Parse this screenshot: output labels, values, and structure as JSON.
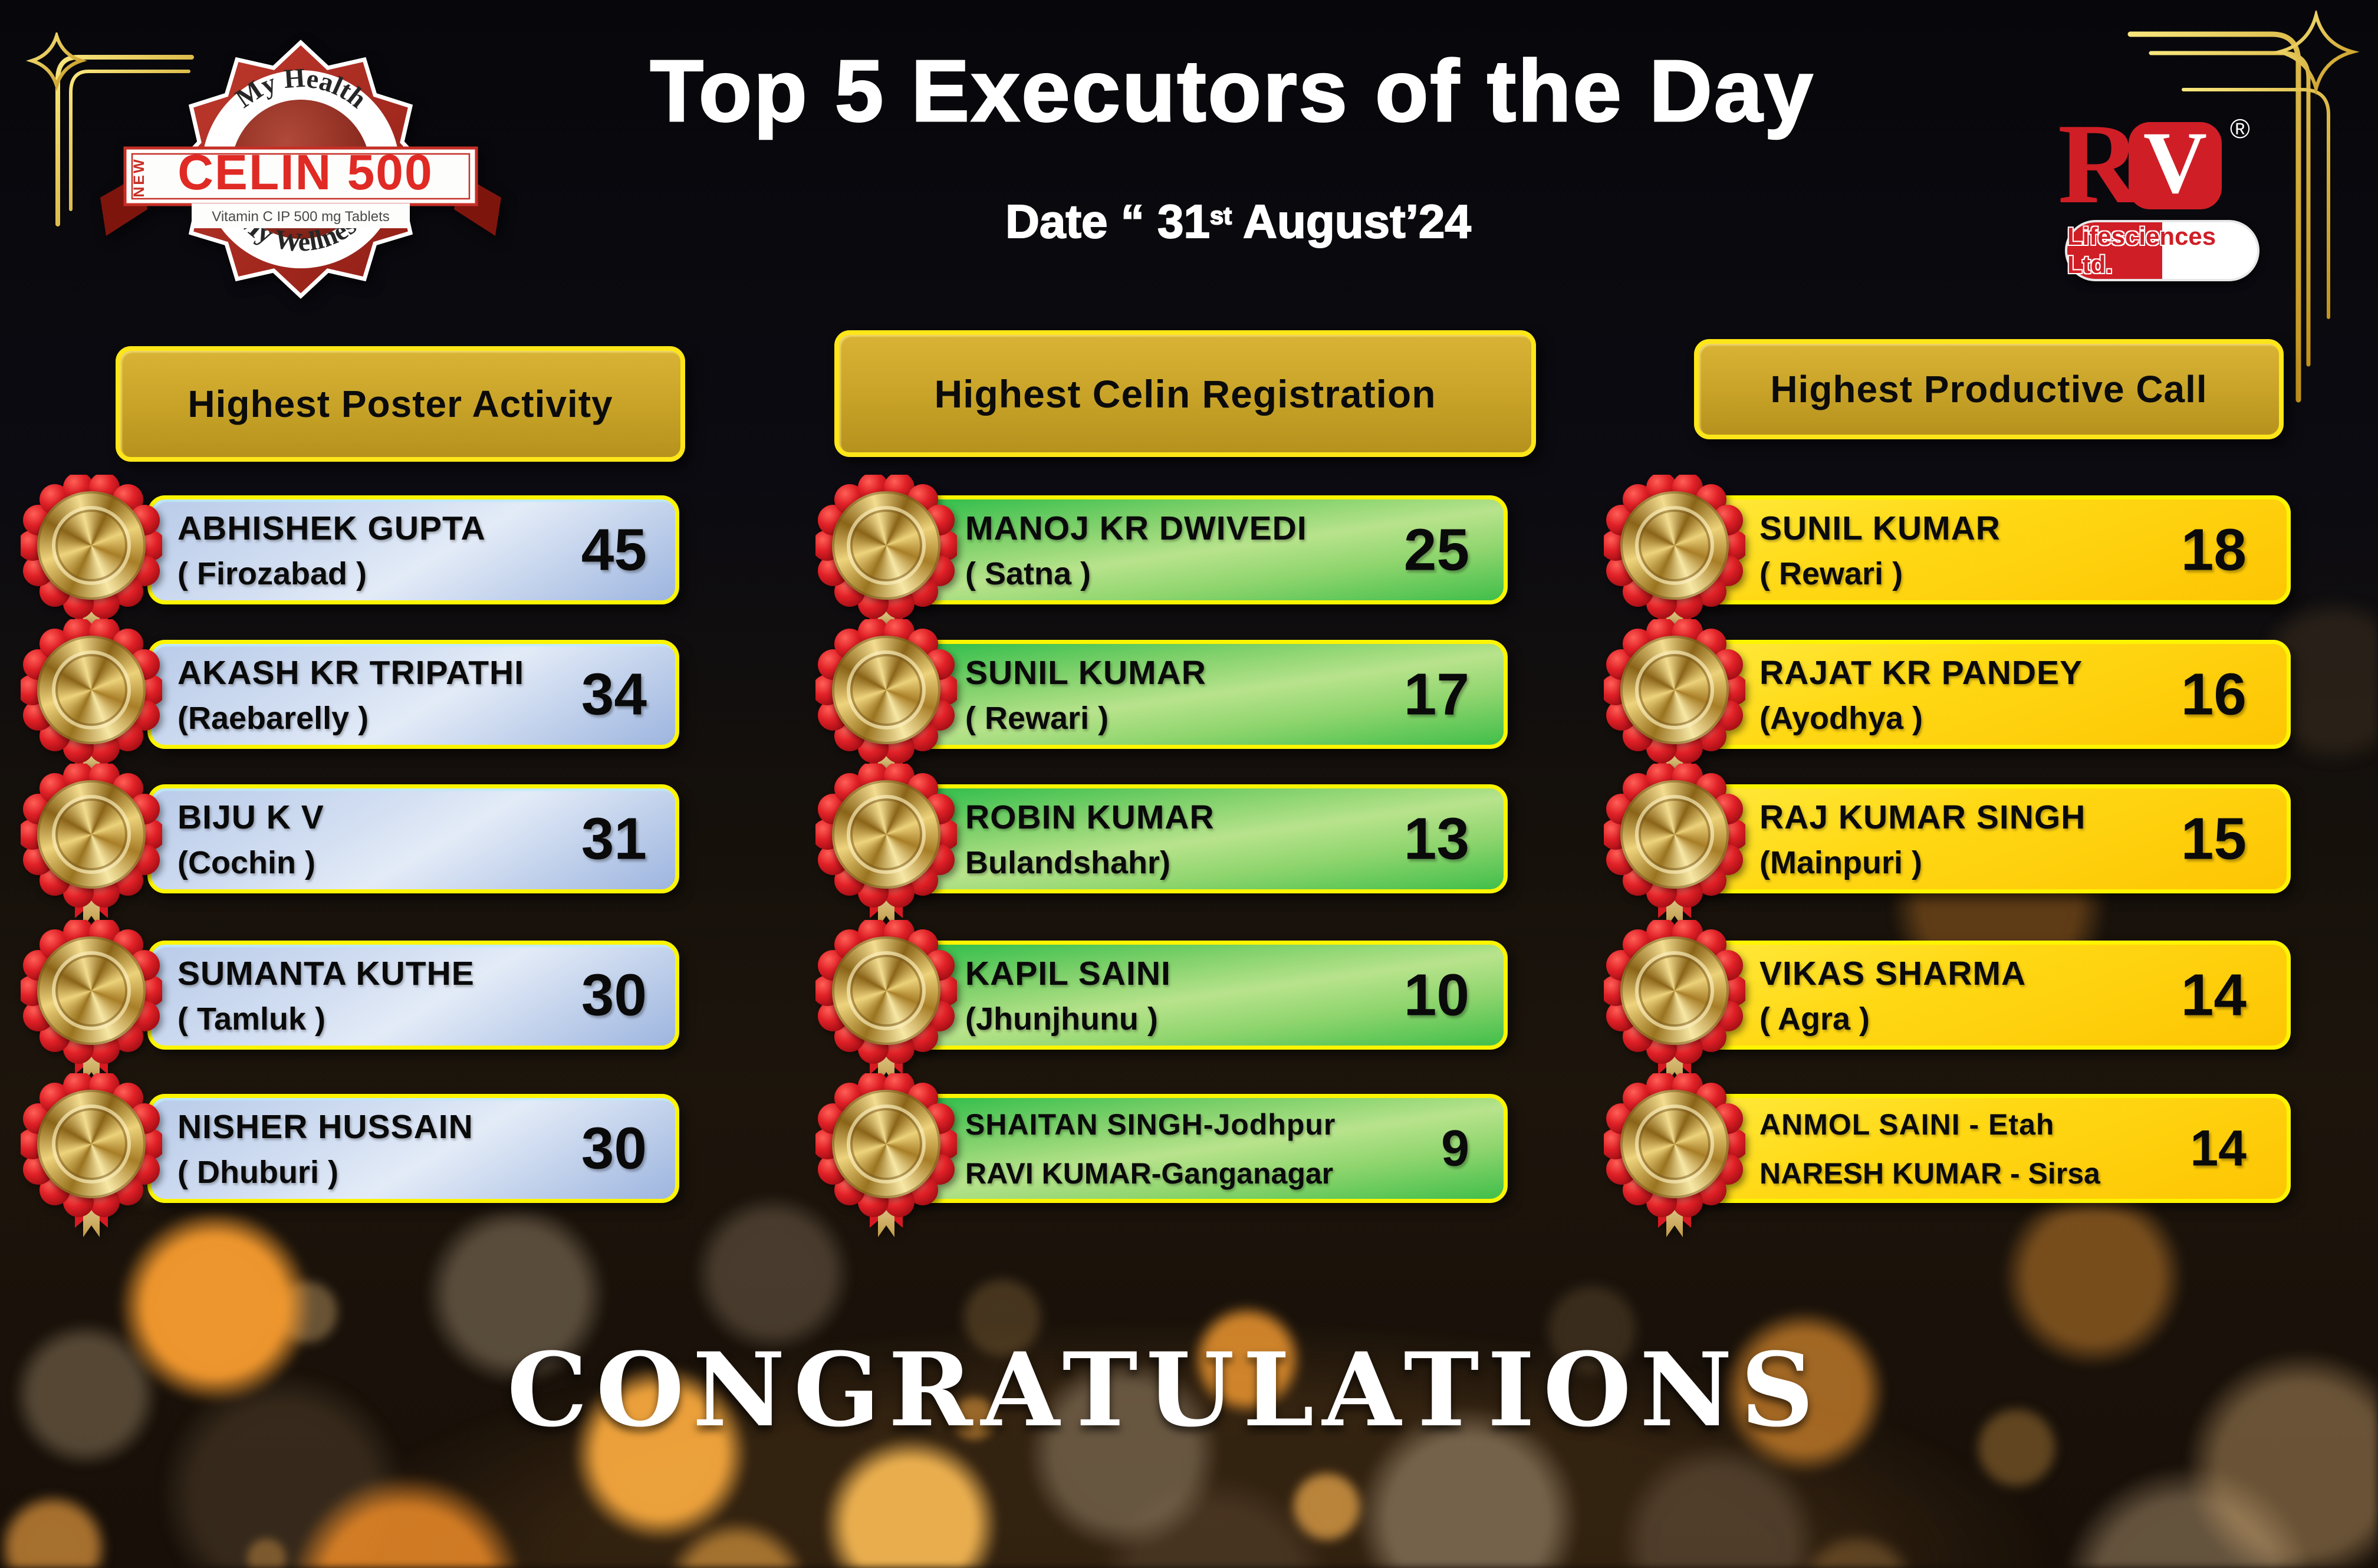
{
  "header": {
    "title": "Top 5 Executors of the Day",
    "date_prefix": "Date “ 31",
    "date_sup": "st",
    "date_suffix": " August’24"
  },
  "congratulations": "CONGRATULATIONS",
  "logos": {
    "celin": {
      "top_text": "My Health",
      "new_label": "NEW",
      "name": "CELIN 500",
      "sub_text": "Vitamin C IP 500 mg Tablets",
      "bottom_text": "My Wellness"
    },
    "rv": {
      "letter_r": "R",
      "letter_v": "V",
      "registered_mark": "®",
      "subtitle": "Lifesciences Ltd."
    }
  },
  "colors": {
    "header_fill": "#c7a227",
    "card_border": "#fdf500",
    "card_blue": "#aac0e4",
    "card_green": "#5fc859",
    "card_yellow": "#ffd814",
    "brand_red": "#d01e26",
    "medal_red": "#e02127",
    "ornament_gold": "#e6c53c"
  },
  "columns": [
    {
      "header": "Highest Poster Activity",
      "card_color": "blue",
      "entries": [
        {
          "name": "ABHISHEK GUPTA",
          "location": "( Firozabad )",
          "value": "45"
        },
        {
          "name": "AKASH KR TRIPATHI",
          "location": "(Raebarelly )",
          "value": "34"
        },
        {
          "name": "BIJU K V",
          "location": "(Cochin )",
          "value": "31"
        },
        {
          "name": "SUMANTA KUTHE",
          "location": "( Tamluk )",
          "value": "30"
        },
        {
          "name": "NISHER HUSSAIN",
          "location": "( Dhuburi )",
          "value": "30"
        }
      ]
    },
    {
      "header": "Highest Celin Registration",
      "card_color": "green",
      "entries": [
        {
          "name": "MANOJ KR DWIVEDI",
          "location": "( Satna  )",
          "value": "25"
        },
        {
          "name": "SUNIL KUMAR",
          "location": "( Rewari )",
          "value": "17"
        },
        {
          "name": "ROBIN KUMAR",
          "location": "Bulandshahr)",
          "value": "13"
        },
        {
          "name": "KAPIL SAINI",
          "location": "(Jhunjhunu )",
          "value": "10"
        },
        {
          "name": "SHAITAN SINGH-Jodhpur",
          "location": "RAVI KUMAR-Ganganagar",
          "value": "9"
        }
      ]
    },
    {
      "header": "Highest Productive Call",
      "card_color": "yellow",
      "entries": [
        {
          "name": "SUNIL KUMAR",
          "location": "( Rewari )",
          "value": "18"
        },
        {
          "name": "RAJAT KR PANDEY",
          "location": "(Ayodhya )",
          "value": "16"
        },
        {
          "name": "RAJ KUMAR SINGH",
          "location": "(Mainpuri )",
          "value": "15"
        },
        {
          "name": "VIKAS SHARMA",
          "location": "( Agra )",
          "value": "14"
        },
        {
          "name": "ANMOL SAINI - Etah",
          "location": "NARESH KUMAR - Sirsa",
          "value": "14"
        }
      ]
    }
  ]
}
